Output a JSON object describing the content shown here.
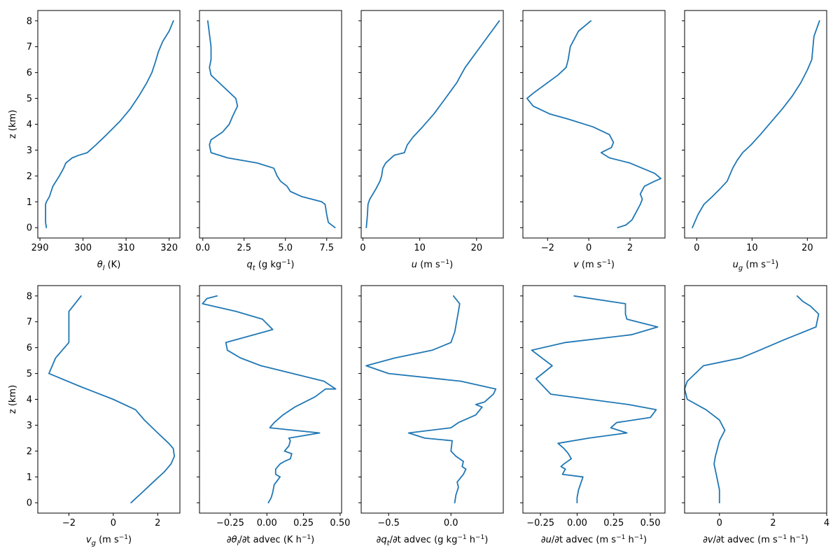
{
  "chart_data": [
    {
      "type": "line",
      "xlabel": "θl (K)",
      "ylabel": "z (km)",
      "xlim": [
        289.5,
        322.5
      ],
      "ylim": [
        -0.4,
        8.4
      ],
      "xticks": [
        290,
        300,
        310,
        320
      ],
      "xtick_labels": [
        "290",
        "300",
        "310",
        "320"
      ],
      "yticks": [
        0,
        1,
        2,
        3,
        4,
        5,
        6,
        7,
        8
      ],
      "ytick_labels": [
        "0",
        "1",
        "2",
        "3",
        "4",
        "5",
        "6",
        "7",
        "8"
      ],
      "series": [
        {
          "x": [
            291.5,
            291.3,
            291.3,
            291.3,
            291.5,
            292.2,
            293.0,
            294.5,
            295.5,
            296.0,
            297.5,
            299.0,
            301.0,
            303.0,
            305.5,
            308.5,
            311.0,
            313.0,
            314.8,
            316.0,
            316.8,
            317.5,
            318.5,
            320.0,
            321.0
          ],
          "y": [
            0.0,
            0.2,
            0.6,
            0.9,
            1.0,
            1.2,
            1.6,
            2.0,
            2.3,
            2.5,
            2.7,
            2.8,
            2.9,
            3.2,
            3.6,
            4.1,
            4.6,
            5.1,
            5.6,
            6.0,
            6.4,
            6.8,
            7.2,
            7.6,
            8.0
          ]
        }
      ]
    },
    {
      "type": "line",
      "xlabel": "qt (g kg−1)",
      "ylabel": "",
      "xlim": [
        -0.2,
        8.4
      ],
      "ylim": [
        -0.4,
        8.4
      ],
      "xticks": [
        0.0,
        2.5,
        5.0,
        7.5
      ],
      "xtick_labels": [
        "0.0",
        "2.5",
        "5.0",
        "7.5"
      ],
      "yticks": [
        0,
        1,
        2,
        3,
        4,
        5,
        6,
        7,
        8
      ],
      "ytick_labels": [],
      "series": [
        {
          "x": [
            8.0,
            7.6,
            7.5,
            7.4,
            7.2,
            6.0,
            5.3,
            5.1,
            4.7,
            4.5,
            4.3,
            3.3,
            1.5,
            0.5,
            0.4,
            0.5,
            1.2,
            1.6,
            1.8,
            2.1,
            2.0,
            1.0,
            0.5,
            0.4,
            0.5,
            0.5,
            0.3
          ],
          "y": [
            0.0,
            0.2,
            0.5,
            0.9,
            1.0,
            1.2,
            1.4,
            1.6,
            1.8,
            2.0,
            2.3,
            2.5,
            2.7,
            2.9,
            3.2,
            3.4,
            3.7,
            4.0,
            4.3,
            4.7,
            5.0,
            5.6,
            5.9,
            6.2,
            6.5,
            7.0,
            8.0
          ]
        }
      ]
    },
    {
      "type": "line",
      "xlabel": "u (m s−1)",
      "ylabel": "",
      "xlim": [
        -0.3,
        24.7
      ],
      "ylim": [
        -0.4,
        8.4
      ],
      "xticks": [
        0,
        10,
        20
      ],
      "xtick_labels": [
        "0",
        "10",
        "20"
      ],
      "yticks": [
        0,
        1,
        2,
        3,
        4,
        5,
        6,
        7,
        8
      ],
      "ytick_labels": [],
      "series": [
        {
          "x": [
            0.6,
            0.8,
            0.9,
            1.2,
            2.3,
            3.0,
            3.3,
            3.5,
            4.0,
            5.5,
            7.3,
            7.8,
            8.8,
            10.5,
            12.5,
            14.5,
            16.5,
            17.5,
            18.0,
            19.0,
            20.0,
            21.0,
            22.0,
            23.0,
            24.0
          ],
          "y": [
            0.0,
            0.5,
            0.9,
            1.1,
            1.5,
            1.8,
            2.0,
            2.3,
            2.5,
            2.8,
            2.9,
            3.2,
            3.5,
            3.9,
            4.4,
            5.0,
            5.6,
            6.0,
            6.2,
            6.5,
            6.8,
            7.1,
            7.4,
            7.7,
            8.0
          ]
        }
      ]
    },
    {
      "type": "line",
      "xlabel": "v (m s−1)",
      "ylabel": "",
      "xlim": [
        -3.2,
        3.7
      ],
      "ylim": [
        -0.4,
        8.4
      ],
      "xticks": [
        -2,
        0,
        2
      ],
      "xtick_labels": [
        "−2",
        "0",
        "2"
      ],
      "yticks": [
        0,
        1,
        2,
        3,
        4,
        5,
        6,
        7,
        8
      ],
      "ytick_labels": [],
      "series": [
        {
          "x": [
            1.4,
            1.8,
            2.1,
            2.3,
            2.5,
            2.6,
            2.5,
            2.7,
            3.2,
            3.5,
            3.2,
            2.6,
            2.0,
            1.0,
            0.6,
            1.1,
            1.2,
            1.0,
            0.2,
            -1.0,
            -1.9,
            -2.7,
            -3.0,
            -2.7,
            -1.5,
            -1.1,
            -1.0,
            -0.9,
            -0.7,
            -0.5,
            0.1
          ],
          "y": [
            0.0,
            0.1,
            0.3,
            0.6,
            0.9,
            1.1,
            1.3,
            1.6,
            1.8,
            1.9,
            2.1,
            2.3,
            2.5,
            2.7,
            2.9,
            3.1,
            3.3,
            3.6,
            3.9,
            4.2,
            4.4,
            4.7,
            5.0,
            5.2,
            5.9,
            6.2,
            6.5,
            7.0,
            7.3,
            7.6,
            8.0
          ]
        }
      ]
    },
    {
      "type": "line",
      "xlabel": "ug (m s−1)",
      "ylabel": "",
      "xlim": [
        -2.2,
        23.5
      ],
      "ylim": [
        -0.4,
        8.4
      ],
      "xticks": [
        0,
        10,
        20
      ],
      "xtick_labels": [
        "0",
        "10",
        "20"
      ],
      "yticks": [
        0,
        1,
        2,
        3,
        4,
        5,
        6,
        7,
        8
      ],
      "ytick_labels": [],
      "series": [
        {
          "x": [
            -0.8,
            0.2,
            1.3,
            2.8,
            4.2,
            5.5,
            6.5,
            7.3,
            8.3,
            9.8,
            11.5,
            13.5,
            15.5,
            17.3,
            18.8,
            20.0,
            20.8,
            21.2,
            22.2
          ],
          "y": [
            0.0,
            0.5,
            0.9,
            1.2,
            1.5,
            1.8,
            2.3,
            2.6,
            2.9,
            3.2,
            3.6,
            4.1,
            4.6,
            5.1,
            5.6,
            6.1,
            6.5,
            7.4,
            8.0
          ]
        }
      ]
    },
    {
      "type": "line",
      "xlabel": "vg (m s−1)",
      "ylabel": "z (km)",
      "xlim": [
        -3.4,
        3.0
      ],
      "ylim": [
        -0.4,
        8.4
      ],
      "xticks": [
        -2,
        0,
        2
      ],
      "xtick_labels": [
        "−2",
        "0",
        "2"
      ],
      "yticks": [
        0,
        1,
        2,
        3,
        4,
        5,
        6,
        7,
        8
      ],
      "ytick_labels": [
        "0",
        "1",
        "2",
        "3",
        "4",
        "5",
        "6",
        "7",
        "8"
      ],
      "series": [
        {
          "x": [
            0.8,
            1.3,
            1.8,
            2.3,
            2.6,
            2.75,
            2.7,
            2.5,
            2.0,
            1.4,
            1.0,
            0.0,
            -1.5,
            -2.9,
            -2.6,
            -2.3,
            -2.0,
            -2.0,
            -2.0,
            -1.45
          ],
          "y": [
            0.0,
            0.4,
            0.8,
            1.2,
            1.5,
            1.8,
            2.1,
            2.3,
            2.7,
            3.2,
            3.6,
            4.0,
            4.5,
            5.0,
            5.6,
            5.9,
            6.2,
            6.5,
            7.4,
            8.0
          ]
        }
      ]
    },
    {
      "type": "line",
      "xlabel": "∂θl/∂t advec (K h−1)",
      "ylabel": "",
      "xlim": [
        -0.46,
        0.51
      ],
      "ylim": [
        -0.4,
        8.4
      ],
      "xticks": [
        -0.25,
        0.0,
        0.25,
        0.5
      ],
      "xtick_labels": [
        "−0.25",
        "0.00",
        "0.25",
        "0.50"
      ],
      "yticks": [
        0,
        1,
        2,
        3,
        4,
        5,
        6,
        7,
        8
      ],
      "ytick_labels": [],
      "series": [
        {
          "x": [
            0.01,
            0.03,
            0.04,
            0.05,
            0.09,
            0.06,
            0.06,
            0.09,
            0.12,
            0.16,
            0.17,
            0.12,
            0.15,
            0.16,
            0.15,
            0.36,
            0.02,
            0.05,
            0.11,
            0.19,
            0.33,
            0.4,
            0.47,
            0.39,
            -0.04,
            -0.18,
            -0.27,
            -0.28,
            0.04,
            -0.03,
            -0.21,
            -0.44,
            -0.41,
            -0.34
          ],
          "y": [
            0.0,
            0.2,
            0.4,
            0.7,
            1.0,
            1.1,
            1.3,
            1.5,
            1.6,
            1.7,
            1.9,
            2.0,
            2.2,
            2.4,
            2.5,
            2.7,
            2.9,
            3.1,
            3.4,
            3.7,
            4.1,
            4.4,
            4.4,
            4.7,
            5.3,
            5.6,
            5.9,
            6.2,
            6.7,
            7.1,
            7.4,
            7.7,
            7.9,
            8.0
          ]
        }
      ]
    },
    {
      "type": "line",
      "xlabel": "∂qt/∂t advec (g kg−1 h−1)",
      "ylabel": "",
      "xlim": [
        -0.72,
        0.42
      ],
      "ylim": [
        -0.4,
        8.4
      ],
      "xticks": [
        -0.5,
        0.0
      ],
      "xtick_labels": [
        "−0.5",
        "0.0"
      ],
      "yticks": [
        0,
        1,
        2,
        3,
        4,
        5,
        6,
        7,
        8
      ],
      "ytick_labels": [],
      "series": [
        {
          "x": [
            0.03,
            0.04,
            0.06,
            0.05,
            0.1,
            0.12,
            0.09,
            0.1,
            0.04,
            0.0,
            0.01,
            -0.21,
            -0.34,
            0.0,
            0.06,
            0.2,
            0.25,
            0.2,
            0.27,
            0.34,
            0.36,
            0.08,
            -0.5,
            -0.68,
            -0.45,
            -0.15,
            0.0,
            0.03,
            0.06,
            0.07,
            0.02
          ],
          "y": [
            0.0,
            0.3,
            0.6,
            0.8,
            1.1,
            1.3,
            1.4,
            1.6,
            1.8,
            2.0,
            2.4,
            2.5,
            2.7,
            2.9,
            3.1,
            3.4,
            3.7,
            3.8,
            3.9,
            4.2,
            4.4,
            4.7,
            5.0,
            5.3,
            5.6,
            5.9,
            6.2,
            6.6,
            7.4,
            7.7,
            8.0
          ]
        }
      ]
    },
    {
      "type": "line",
      "xlabel": "∂u/∂t advec (m s−1 h−1)",
      "ylabel": "",
      "xlim": [
        -0.37,
        0.6
      ],
      "ylim": [
        -0.4,
        8.4
      ],
      "xticks": [
        -0.25,
        0.0,
        0.25,
        0.5
      ],
      "xtick_labels": [
        "−0.25",
        "0.00",
        "0.25",
        "0.50"
      ],
      "yticks": [
        0,
        1,
        2,
        3,
        4,
        5,
        6,
        7,
        8
      ],
      "ytick_labels": [],
      "series": [
        {
          "x": [
            0.0,
            0.0,
            0.01,
            0.04,
            -0.1,
            -0.08,
            -0.11,
            -0.09,
            -0.04,
            -0.06,
            -0.09,
            -0.13,
            0.08,
            0.34,
            0.23,
            0.27,
            0.5,
            0.54,
            0.35,
            -0.18,
            -0.28,
            -0.17,
            -0.31,
            -0.08,
            0.37,
            0.55,
            0.34,
            0.33,
            0.33,
            -0.02
          ],
          "y": [
            0.0,
            0.2,
            0.5,
            1.0,
            1.1,
            1.3,
            1.4,
            1.5,
            1.7,
            1.9,
            2.1,
            2.3,
            2.5,
            2.7,
            2.9,
            3.1,
            3.3,
            3.6,
            3.8,
            4.2,
            4.8,
            5.3,
            5.9,
            6.2,
            6.5,
            6.8,
            7.1,
            7.3,
            7.7,
            8.0
          ]
        }
      ]
    },
    {
      "type": "line",
      "xlabel": "∂v/∂t advec (m s−1 h−1)",
      "ylabel": "",
      "xlim": [
        -1.3,
        4.0
      ],
      "ylim": [
        -0.4,
        8.4
      ],
      "xticks": [
        0,
        2,
        4
      ],
      "xtick_labels": [
        "0",
        "2",
        "4"
      ],
      "yticks": [
        0,
        1,
        2,
        3,
        4,
        5,
        6,
        7,
        8
      ],
      "ytick_labels": [],
      "series": [
        {
          "x": [
            0.0,
            0.0,
            -0.1,
            -0.2,
            -0.15,
            -0.1,
            0.0,
            0.2,
            0.0,
            -0.5,
            -1.2,
            -1.3,
            -1.2,
            -0.6,
            0.8,
            1.5,
            2.4,
            3.6,
            3.7,
            3.4,
            3.1,
            2.9
          ],
          "y": [
            0.0,
            0.5,
            1.0,
            1.5,
            1.8,
            2.0,
            2.4,
            2.8,
            3.2,
            3.6,
            4.0,
            4.4,
            4.7,
            5.3,
            5.6,
            5.9,
            6.3,
            6.8,
            7.3,
            7.6,
            7.8,
            8.0
          ]
        }
      ]
    }
  ]
}
